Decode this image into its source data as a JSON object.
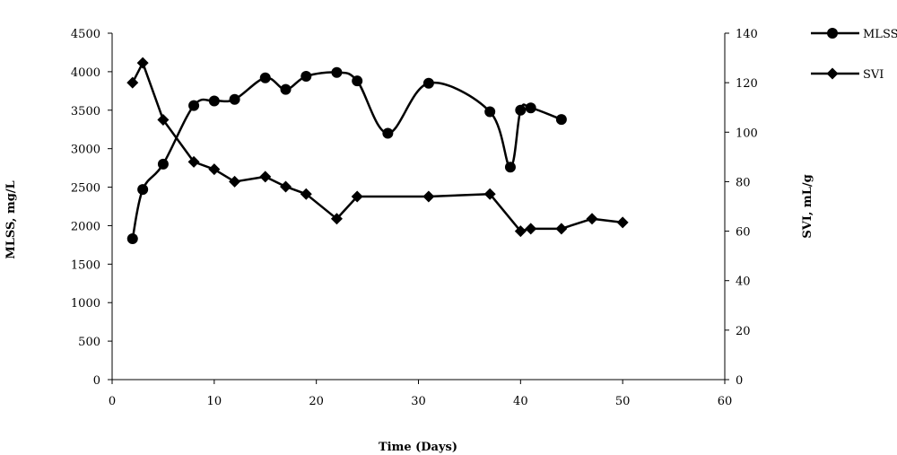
{
  "chart_data": {
    "type": "line",
    "title": "",
    "xlabel": "Time (Days)",
    "ylabel_left": "MLSS, mg/L",
    "ylabel_right": "SVI, mL/g",
    "xlim": [
      0,
      60
    ],
    "ylim_left": [
      0,
      4500
    ],
    "ylim_right": [
      0,
      140
    ],
    "x_ticks": [
      0,
      10,
      20,
      30,
      40,
      50,
      60
    ],
    "y_left_ticks": [
      0,
      500,
      1000,
      1500,
      2000,
      2500,
      3000,
      3500,
      4000,
      4500
    ],
    "y_right_ticks": [
      0,
      20,
      40,
      60,
      80,
      100,
      120,
      140
    ],
    "grid": false,
    "legend_position": "top-right",
    "series": [
      {
        "name": "MLSS",
        "axis": "left",
        "marker": "circle",
        "smooth": true,
        "x": [
          2,
          3,
          5,
          8,
          10,
          12,
          15,
          17,
          19,
          22,
          24,
          27,
          31,
          37,
          39,
          40,
          41,
          44
        ],
        "y": [
          1830,
          2470,
          2800,
          3560,
          3620,
          3640,
          3920,
          3770,
          3940,
          3990,
          3880,
          3200,
          3850,
          3480,
          2760,
          3500,
          3530,
          3380
        ]
      },
      {
        "name": "SVI",
        "axis": "right",
        "marker": "diamond",
        "smooth": false,
        "x": [
          2,
          3,
          5,
          8,
          10,
          12,
          15,
          17,
          19,
          22,
          24,
          31,
          37,
          40,
          41,
          44,
          47,
          50
        ],
        "y": [
          120,
          128,
          105,
          88,
          85,
          80,
          82,
          78,
          75,
          65,
          74,
          74,
          75,
          60,
          61,
          61,
          65,
          63.5
        ]
      }
    ]
  }
}
